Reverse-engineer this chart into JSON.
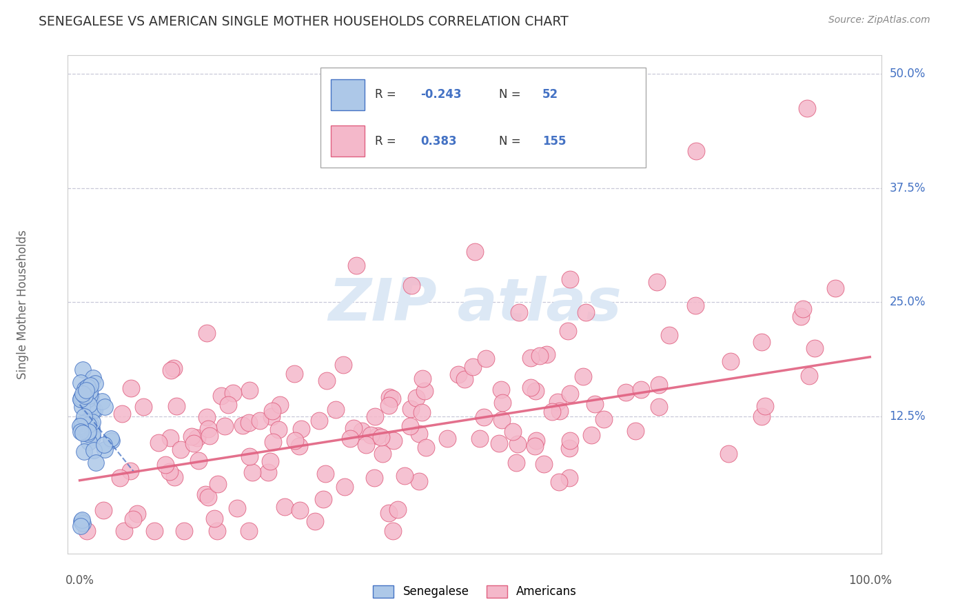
{
  "title": "SENEGALESE VS AMERICAN SINGLE MOTHER HOUSEHOLDS CORRELATION CHART",
  "source": "Source: ZipAtlas.com",
  "ylabel": "Single Mother Households",
  "ytick_vals": [
    0.125,
    0.25,
    0.375,
    0.5
  ],
  "ytick_labels": [
    "12.5%",
    "25.0%",
    "37.5%",
    "50.0%"
  ],
  "legend_r1": "-0.243",
  "legend_n1": "52",
  "legend_r2": "0.383",
  "legend_n2": "155",
  "color_blue_fill": "#adc8e8",
  "color_blue_edge": "#4472c4",
  "color_pink_fill": "#f4b8ca",
  "color_pink_edge": "#e06080",
  "color_text_blue": "#4472c4",
  "color_grid": "#c8c8d8",
  "color_title": "#333333",
  "color_source": "#888888",
  "color_axis_label": "#666666",
  "watermark_color": "#dce8f5",
  "background": "#ffffff",
  "xlim": [
    0.0,
    1.0
  ],
  "ylim": [
    0.0,
    0.52
  ],
  "sen_trend_start_x": 0.0,
  "sen_trend_start_y": 0.138,
  "sen_trend_end_x": 0.068,
  "sen_trend_end_y": 0.065,
  "ame_trend_start_x": 0.0,
  "ame_trend_start_y": 0.055,
  "ame_trend_end_x": 1.0,
  "ame_trend_end_y": 0.19
}
